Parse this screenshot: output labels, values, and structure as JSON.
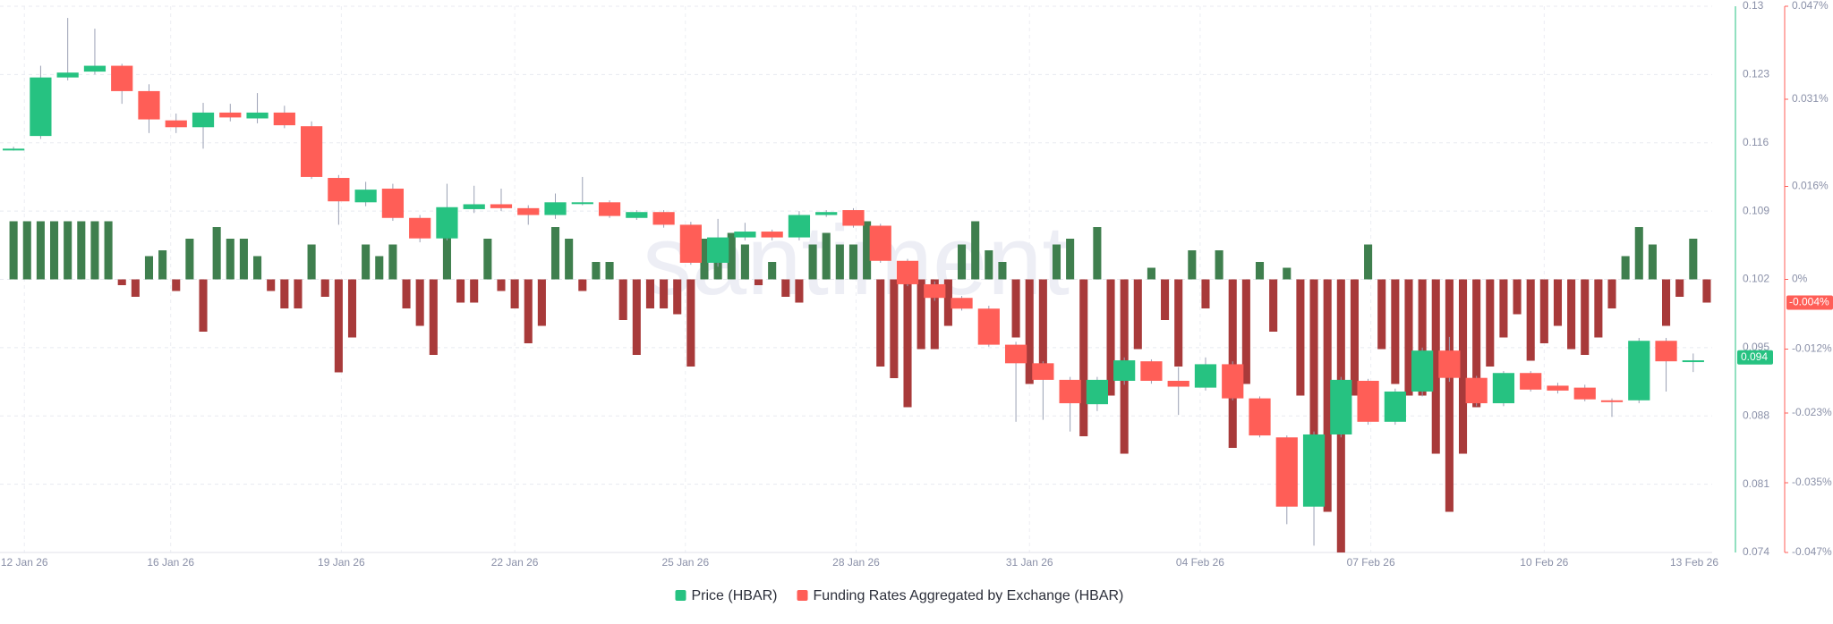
{
  "chart_data": {
    "type": "candlestick_funding",
    "watermark": "santiment",
    "series": [
      {
        "name": "Price (HBAR)",
        "color": "#26c281",
        "down_color": "#ff5e57",
        "x": [
          0,
          1,
          2,
          3,
          4,
          5,
          6,
          7,
          8,
          9,
          10,
          11,
          12,
          13,
          14,
          15,
          16,
          17,
          18,
          19,
          20,
          21,
          22,
          23,
          24,
          25,
          26,
          27,
          28,
          29,
          30,
          31,
          32,
          33,
          34,
          35,
          36,
          37,
          38,
          39,
          40,
          41,
          42,
          43,
          44,
          45,
          46,
          47,
          48,
          49,
          50,
          51,
          52,
          53,
          54,
          55,
          56,
          57,
          58,
          59,
          60,
          61,
          62
        ],
        "open": [
          0.1154,
          0.1167,
          0.1227,
          0.1233,
          0.1239,
          0.1213,
          0.1183,
          0.1176,
          0.1191,
          0.1185,
          0.1191,
          0.1177,
          0.1124,
          0.1099,
          0.1113,
          0.1083,
          0.1062,
          0.1092,
          0.1097,
          0.1093,
          0.1086,
          0.1099,
          0.1099,
          0.1083,
          0.1089,
          0.1076,
          0.1037,
          0.1063,
          0.1069,
          0.1063,
          0.1086,
          0.1091,
          0.1075,
          0.1039,
          0.1015,
          0.1001,
          0.099,
          0.0953,
          0.0934,
          0.0917,
          0.0892,
          0.0916,
          0.0936,
          0.0916,
          0.0909,
          0.0933,
          0.0898,
          0.0858,
          0.0787,
          0.0861,
          0.0916,
          0.0874,
          0.0905,
          0.0947,
          0.0919,
          0.0893,
          0.0924,
          0.0911,
          0.0909,
          0.0896,
          0.0896,
          0.0957,
          0.0936
        ],
        "high": [
          0.1156,
          0.1239,
          0.1288,
          0.1277,
          0.1241,
          0.122,
          0.119,
          0.1201,
          0.12,
          0.1211,
          0.1198,
          0.1182,
          0.1127,
          0.112,
          0.1118,
          0.1086,
          0.1118,
          0.1116,
          0.1113,
          0.1096,
          0.1108,
          0.1125,
          0.1101,
          0.1091,
          0.1091,
          0.1079,
          0.1082,
          0.1078,
          0.1071,
          0.109,
          0.1091,
          0.1093,
          0.1077,
          0.1041,
          0.1018,
          0.1003,
          0.0993,
          0.0956,
          0.0936,
          0.092,
          0.092,
          0.094,
          0.0938,
          0.093,
          0.094,
          0.0936,
          0.09,
          0.086,
          0.0864,
          0.092,
          0.0918,
          0.0908,
          0.095,
          0.0961,
          0.0921,
          0.0926,
          0.0926,
          0.0914,
          0.0912,
          0.0898,
          0.096,
          0.096,
          0.0944
        ],
        "low": [
          0.1152,
          0.1164,
          0.1224,
          0.123,
          0.12,
          0.117,
          0.117,
          0.1154,
          0.1182,
          0.118,
          0.1175,
          0.1123,
          0.1076,
          0.1095,
          0.108,
          0.1058,
          0.106,
          0.1088,
          0.109,
          0.1076,
          0.1082,
          0.1096,
          0.1083,
          0.1081,
          0.1073,
          0.1035,
          0.1033,
          0.106,
          0.106,
          0.106,
          0.1084,
          0.1073,
          0.1037,
          0.1013,
          0.0998,
          0.0988,
          0.0951,
          0.0874,
          0.0876,
          0.0864,
          0.0885,
          0.0912,
          0.0913,
          0.0881,
          0.0906,
          0.0896,
          0.0858,
          0.0769,
          0.0747,
          0.0858,
          0.0871,
          0.0871,
          0.09,
          0.0915,
          0.089,
          0.089,
          0.0905,
          0.0903,
          0.0895,
          0.0879,
          0.0893,
          0.0905,
          0.0925
        ],
        "close": [
          0.1154,
          0.1227,
          0.1232,
          0.1239,
          0.1213,
          0.1184,
          0.1176,
          0.1191,
          0.1186,
          0.1191,
          0.1178,
          0.1125,
          0.11,
          0.1112,
          0.1083,
          0.1062,
          0.1094,
          0.1097,
          0.1093,
          0.1086,
          0.1099,
          0.1099,
          0.1085,
          0.1089,
          0.1076,
          0.1037,
          0.1063,
          0.1069,
          0.1063,
          0.1086,
          0.1089,
          0.1075,
          0.1039,
          0.1015,
          0.1001,
          0.099,
          0.0953,
          0.0934,
          0.0917,
          0.0893,
          0.0917,
          0.0937,
          0.0916,
          0.091,
          0.0933,
          0.0898,
          0.086,
          0.0787,
          0.0861,
          0.0917,
          0.0874,
          0.0905,
          0.0947,
          0.0919,
          0.0893,
          0.0924,
          0.0907,
          0.0906,
          0.0897,
          0.0895,
          0.0957,
          0.0936,
          0.0937
        ],
        "current": {
          "value": 0.094,
          "label": "0.094"
        }
      },
      {
        "name": "Funding Rates Aggregated by Exchange (HBAR)",
        "color": "#ff5e57",
        "axis": "y2",
        "positive_color": "#3f7f4e",
        "negative_color": "#a83a3a",
        "x": [
          0,
          0.5,
          1,
          1.5,
          2,
          2.5,
          3,
          3.5,
          4,
          4.5,
          5,
          5.5,
          6,
          6.5,
          7,
          7.5,
          8,
          8.5,
          9,
          9.5,
          10,
          10.5,
          11,
          11.5,
          12,
          12.5,
          13,
          13.5,
          14,
          14.5,
          15,
          15.5,
          16,
          16.5,
          17,
          17.5,
          18,
          18.5,
          19,
          19.5,
          20,
          20.5,
          21,
          21.5,
          22,
          22.5,
          23,
          23.5,
          24,
          24.5,
          25,
          25.5,
          26,
          26.5,
          27,
          27.5,
          28,
          28.5,
          29,
          29.5,
          30,
          30.5,
          31,
          31.5,
          32,
          32.5,
          33,
          33.5,
          34,
          34.5,
          35,
          35.5,
          36,
          36.5,
          37,
          37.5,
          38,
          38.5,
          39,
          39.5,
          40,
          40.5,
          41,
          41.5,
          42,
          42.5,
          43,
          43.5,
          44,
          44.5,
          45,
          45.5,
          46,
          46.5,
          47,
          47.5,
          48,
          48.5,
          49,
          49.5,
          50,
          50.5,
          51,
          51.5,
          52,
          52.5,
          53,
          53.5,
          54,
          54.5,
          55,
          55.5,
          56,
          56.5,
          57,
          57.5,
          58,
          58.5,
          59,
          59.5,
          60,
          60.5,
          61,
          61.5,
          62,
          62.5
        ],
        "values": [
          0.01,
          0.01,
          0.01,
          0.01,
          0.01,
          0.01,
          0.01,
          0.01,
          -0.001,
          -0.003,
          0.004,
          0.005,
          -0.002,
          0.007,
          -0.009,
          0.009,
          0.007,
          0.007,
          0.004,
          -0.002,
          -0.005,
          -0.005,
          0.006,
          -0.003,
          -0.016,
          -0.01,
          0.006,
          0.004,
          0.006,
          -0.005,
          -0.008,
          -0.013,
          0.011,
          -0.004,
          -0.004,
          0.007,
          -0.002,
          -0.005,
          -0.011,
          -0.008,
          0.009,
          0.007,
          -0.002,
          0.003,
          0.003,
          -0.007,
          -0.013,
          -0.005,
          -0.005,
          -0.006,
          -0.015,
          0.007,
          0.007,
          0.008,
          0.006,
          -0.001,
          0.003,
          -0.003,
          -0.004,
          0.006,
          0.008,
          0.006,
          0.006,
          0.01,
          -0.015,
          -0.017,
          -0.022,
          -0.012,
          -0.012,
          -0.008,
          0.006,
          0.01,
          0.005,
          0.003,
          -0.01,
          -0.018,
          -0.016,
          0.006,
          0.007,
          -0.027,
          0.009,
          -0.02,
          -0.03,
          -0.012,
          0.002,
          -0.007,
          -0.015,
          0.005,
          -0.005,
          0.005,
          -0.029,
          -0.018,
          0.003,
          -0.009,
          0.002,
          -0.02,
          -0.028,
          -0.04,
          -0.047,
          -0.02,
          0.006,
          -0.012,
          -0.018,
          -0.02,
          -0.02,
          -0.03,
          -0.04,
          -0.03,
          -0.022,
          -0.015,
          -0.01,
          -0.006,
          -0.014,
          -0.011,
          -0.008,
          -0.012,
          -0.013,
          -0.01,
          -0.005,
          0.004,
          0.009,
          0.006,
          -0.008,
          -0.003,
          0.007,
          -0.004
        ],
        "current": {
          "value": -0.004,
          "label": "-0.004%"
        }
      }
    ],
    "xlim": [
      -0.5,
      62.7
    ],
    "xticks": [
      {
        "value": 0.4,
        "label": "12 Jan 26"
      },
      {
        "value": 5.8,
        "label": "16 Jan 26"
      },
      {
        "value": 12.1,
        "label": "19 Jan 26"
      },
      {
        "value": 18.5,
        "label": "22 Jan 26"
      },
      {
        "value": 24.8,
        "label": "25 Jan 26"
      },
      {
        "value": 31.1,
        "label": "28 Jan 26"
      },
      {
        "value": 37.5,
        "label": "31 Jan 26"
      },
      {
        "value": 43.8,
        "label": "04 Feb 26"
      },
      {
        "value": 50.1,
        "label": "07 Feb 26"
      },
      {
        "value": 56.5,
        "label": "10 Feb 26"
      },
      {
        "value": 63.4,
        "label": "13 Feb 26"
      }
    ],
    "ylim": [
      0.074,
      0.13
    ],
    "yticks": [
      0.074,
      0.081,
      0.088,
      0.095,
      0.102,
      0.109,
      0.116,
      0.123,
      0.13
    ],
    "y2lim": [
      -0.047,
      0.047
    ],
    "y2ticks": [
      {
        "value": -0.047,
        "label": "-0.047%"
      },
      {
        "value": -0.035,
        "label": "-0.035%"
      },
      {
        "value": -0.023,
        "label": "-0.023%"
      },
      {
        "value": -0.012,
        "label": "-0.012%"
      },
      {
        "value": 0,
        "label": "0%"
      },
      {
        "value": 0.016,
        "label": "0.016%"
      },
      {
        "value": 0.031,
        "label": "0.031%"
      },
      {
        "value": 0.047,
        "label": "0.047%"
      }
    ],
    "grid": true
  }
}
